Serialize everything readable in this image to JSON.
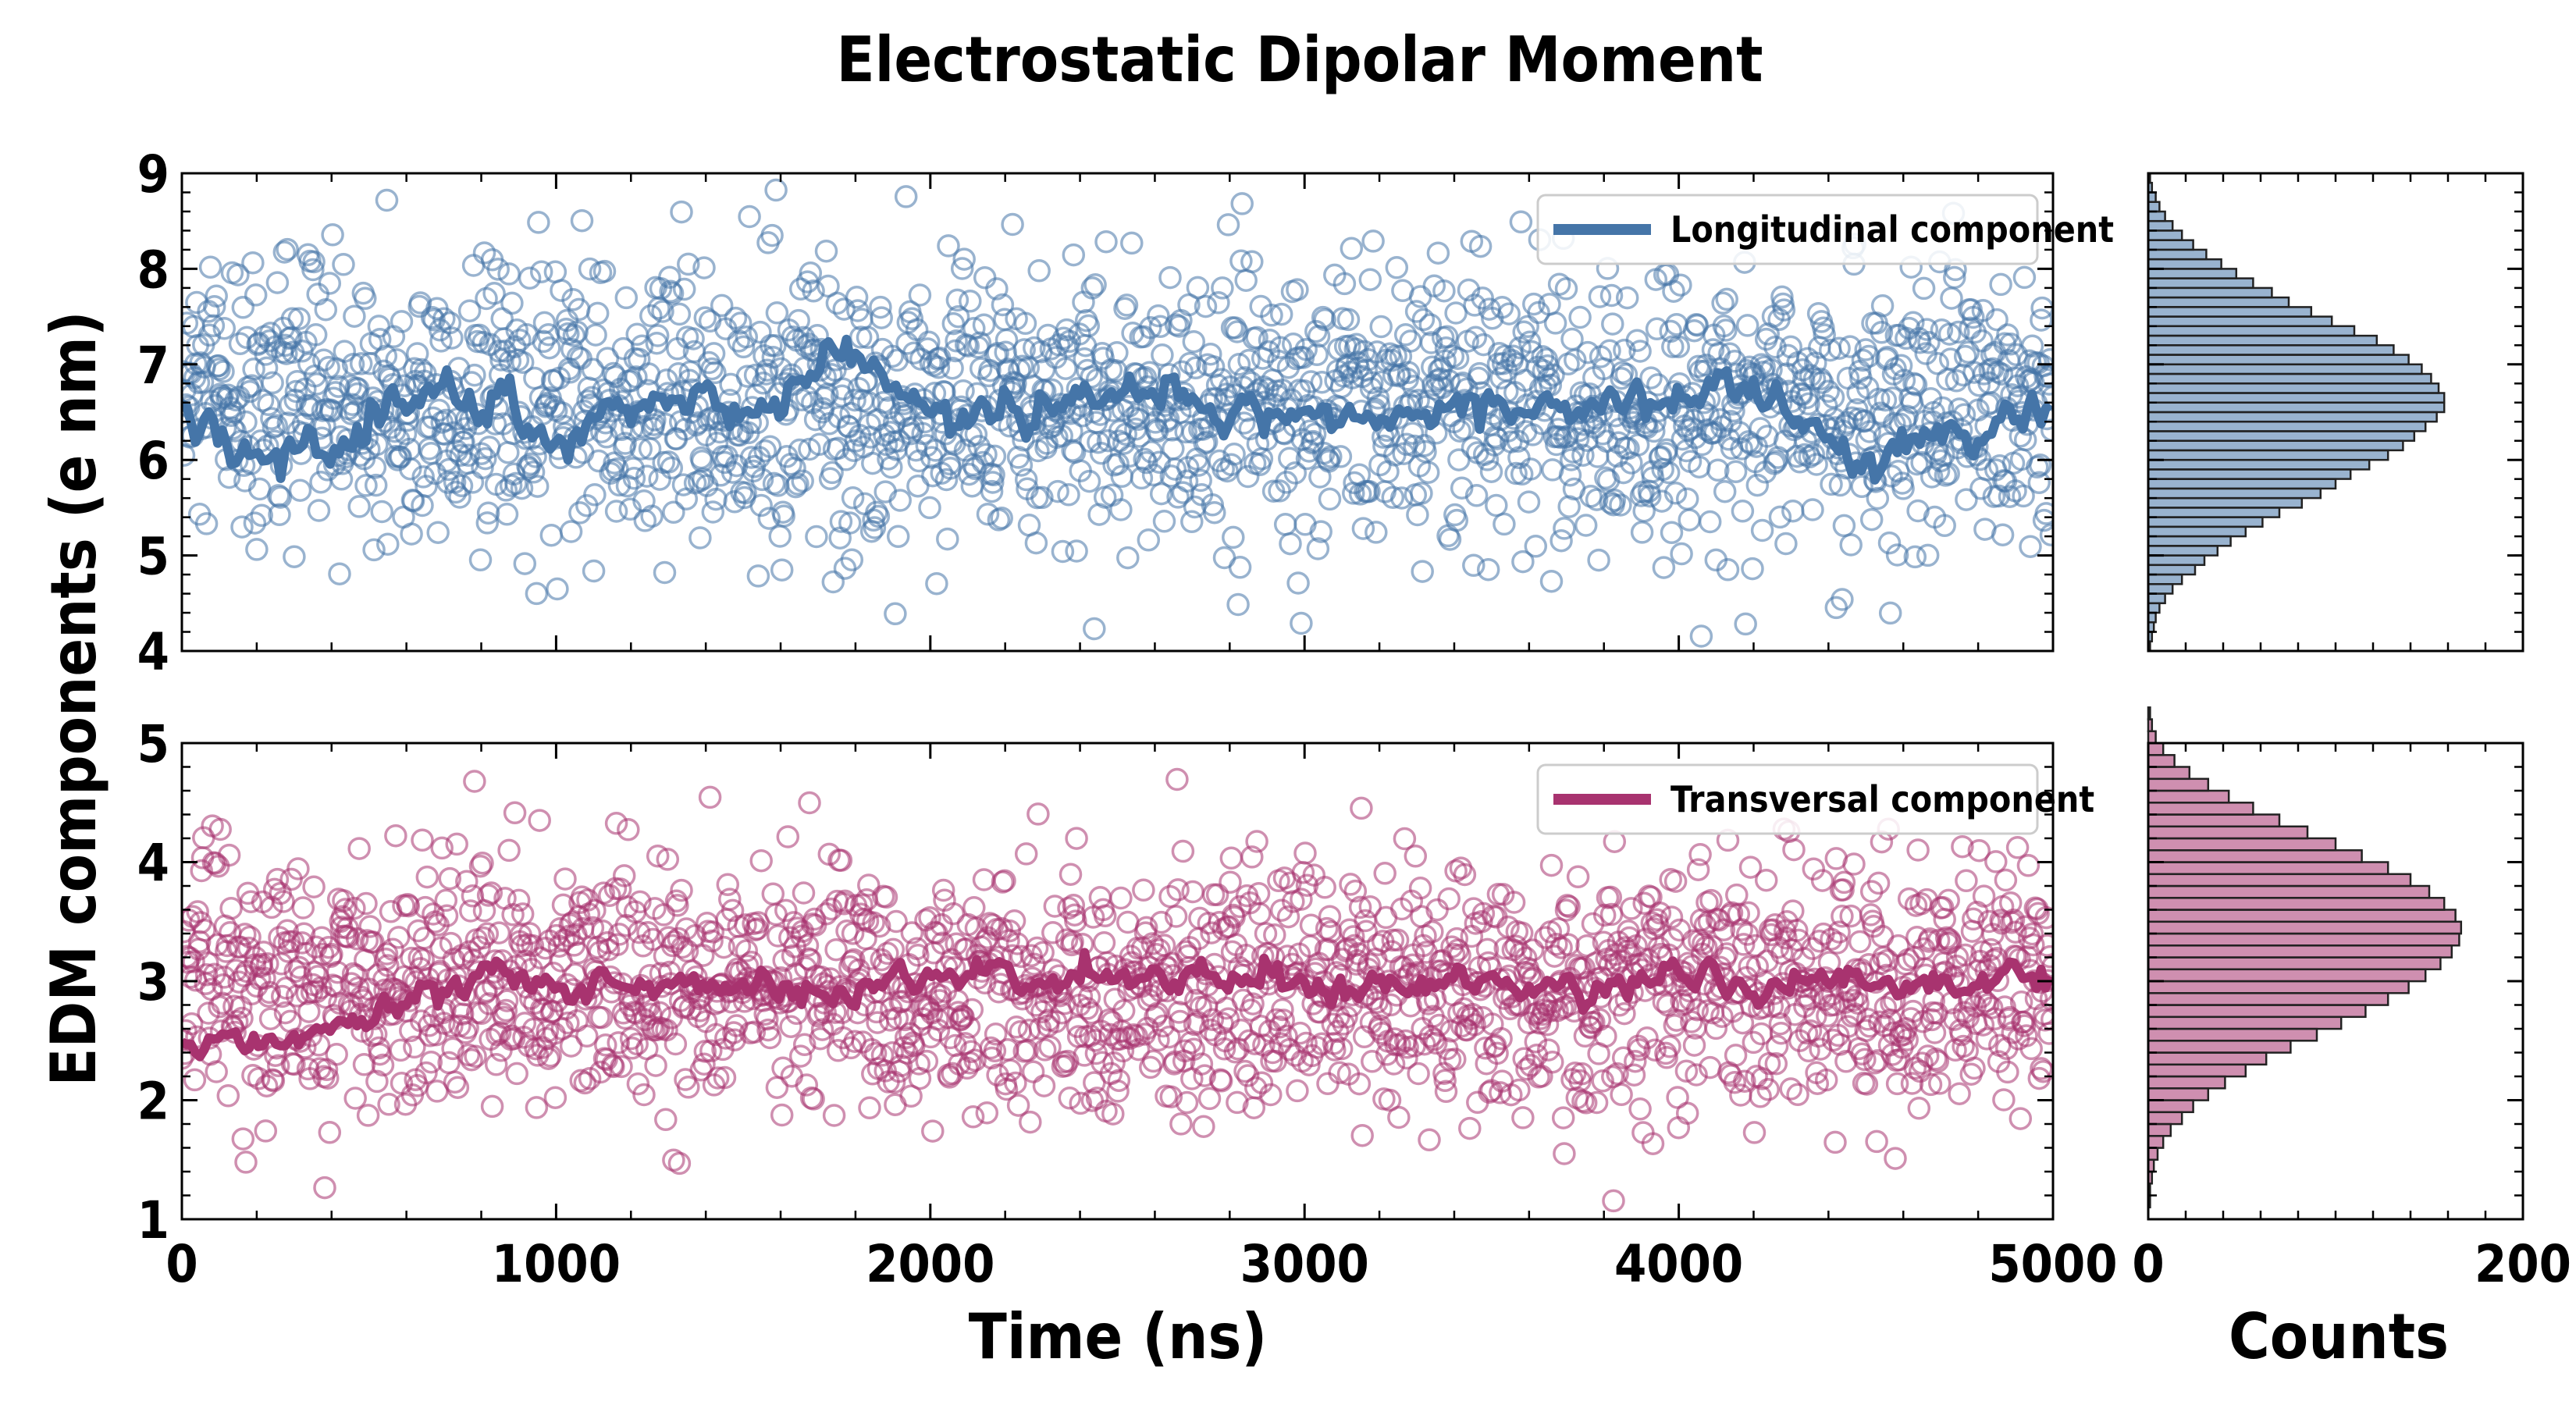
{
  "chart_data": {
    "type": "scatter",
    "title": "Electrostatic Dipolar Moment",
    "ylabel": "EDM components (e nm)",
    "xlabel": "Time (ns)",
    "hist_xlabel": "Counts",
    "xlim": [
      0,
      5000
    ],
    "x_ticks": [
      "0",
      "1000",
      "2000",
      "3000",
      "4000",
      "5000"
    ],
    "hist_xlim": [
      0,
      200
    ],
    "hist_x_ticks": [
      "0",
      "200"
    ],
    "panels": [
      {
        "name": "longitudinal",
        "legend": "Longitudinal component",
        "color": "#4575a8",
        "ylim": [
          4,
          9
        ],
        "y_ticks": [
          "4",
          "5",
          "6",
          "7",
          "8",
          "9"
        ],
        "scatter_mean": 6.55,
        "scatter_sd": 0.75,
        "running_mean_anchors": [
          [
            0,
            6.6
          ],
          [
            150,
            6.0
          ],
          [
            300,
            6.1
          ],
          [
            500,
            6.3
          ],
          [
            600,
            6.6
          ],
          [
            800,
            6.6
          ],
          [
            1000,
            6.3
          ],
          [
            1200,
            6.6
          ],
          [
            1600,
            6.6
          ],
          [
            1750,
            7.1
          ],
          [
            2000,
            6.5
          ],
          [
            2500,
            6.6
          ],
          [
            2650,
            6.8
          ],
          [
            2750,
            6.4
          ],
          [
            3200,
            6.5
          ],
          [
            3600,
            6.5
          ],
          [
            4000,
            6.6
          ],
          [
            4100,
            6.8
          ],
          [
            4400,
            6.2
          ],
          [
            4800,
            6.2
          ],
          [
            5000,
            6.7
          ]
        ],
        "histogram": {
          "bin_start": 4.0,
          "bin_width": 0.1,
          "counts": [
            1,
            2,
            3,
            4,
            6,
            9,
            13,
            18,
            25,
            30,
            37,
            44,
            52,
            61,
            70,
            82,
            92,
            100,
            108,
            118,
            128,
            136,
            142,
            148,
            154,
            158,
            158,
            155,
            151,
            146,
            139,
            131,
            122,
            110,
            98,
            87,
            75,
            66,
            56,
            47,
            39,
            31,
            24,
            18,
            13,
            9,
            6,
            4,
            2,
            1
          ]
        }
      },
      {
        "name": "transversal",
        "legend": "Transversal component",
        "color": "#a8336f",
        "ylim": [
          1,
          5
        ],
        "y_ticks": [
          "1",
          "2",
          "3",
          "4",
          "5"
        ],
        "scatter_mean": 2.95,
        "scatter_sd": 0.52,
        "running_mean_anchors": [
          [
            0,
            2.5
          ],
          [
            200,
            2.5
          ],
          [
            400,
            2.6
          ],
          [
            600,
            2.9
          ],
          [
            800,
            3.0
          ],
          [
            1000,
            2.95
          ],
          [
            1500,
            3.0
          ],
          [
            2000,
            3.0
          ],
          [
            2500,
            3.0
          ],
          [
            2800,
            3.1
          ],
          [
            3000,
            3.0
          ],
          [
            3500,
            2.95
          ],
          [
            4000,
            3.0
          ],
          [
            4500,
            2.95
          ],
          [
            5000,
            3.0
          ]
        ],
        "histogram": {
          "bin_start": 1.0,
          "bin_width": 0.1,
          "counts": [
            0,
            1,
            1,
            2,
            3,
            5,
            8,
            12,
            18,
            24,
            32,
            41,
            52,
            63,
            76,
            90,
            103,
            116,
            128,
            139,
            148,
            156,
            162,
            166,
            167,
            164,
            158,
            150,
            140,
            128,
            114,
            100,
            85,
            70,
            56,
            43,
            32,
            22,
            14,
            8,
            4,
            2,
            1
          ]
        }
      }
    ]
  }
}
